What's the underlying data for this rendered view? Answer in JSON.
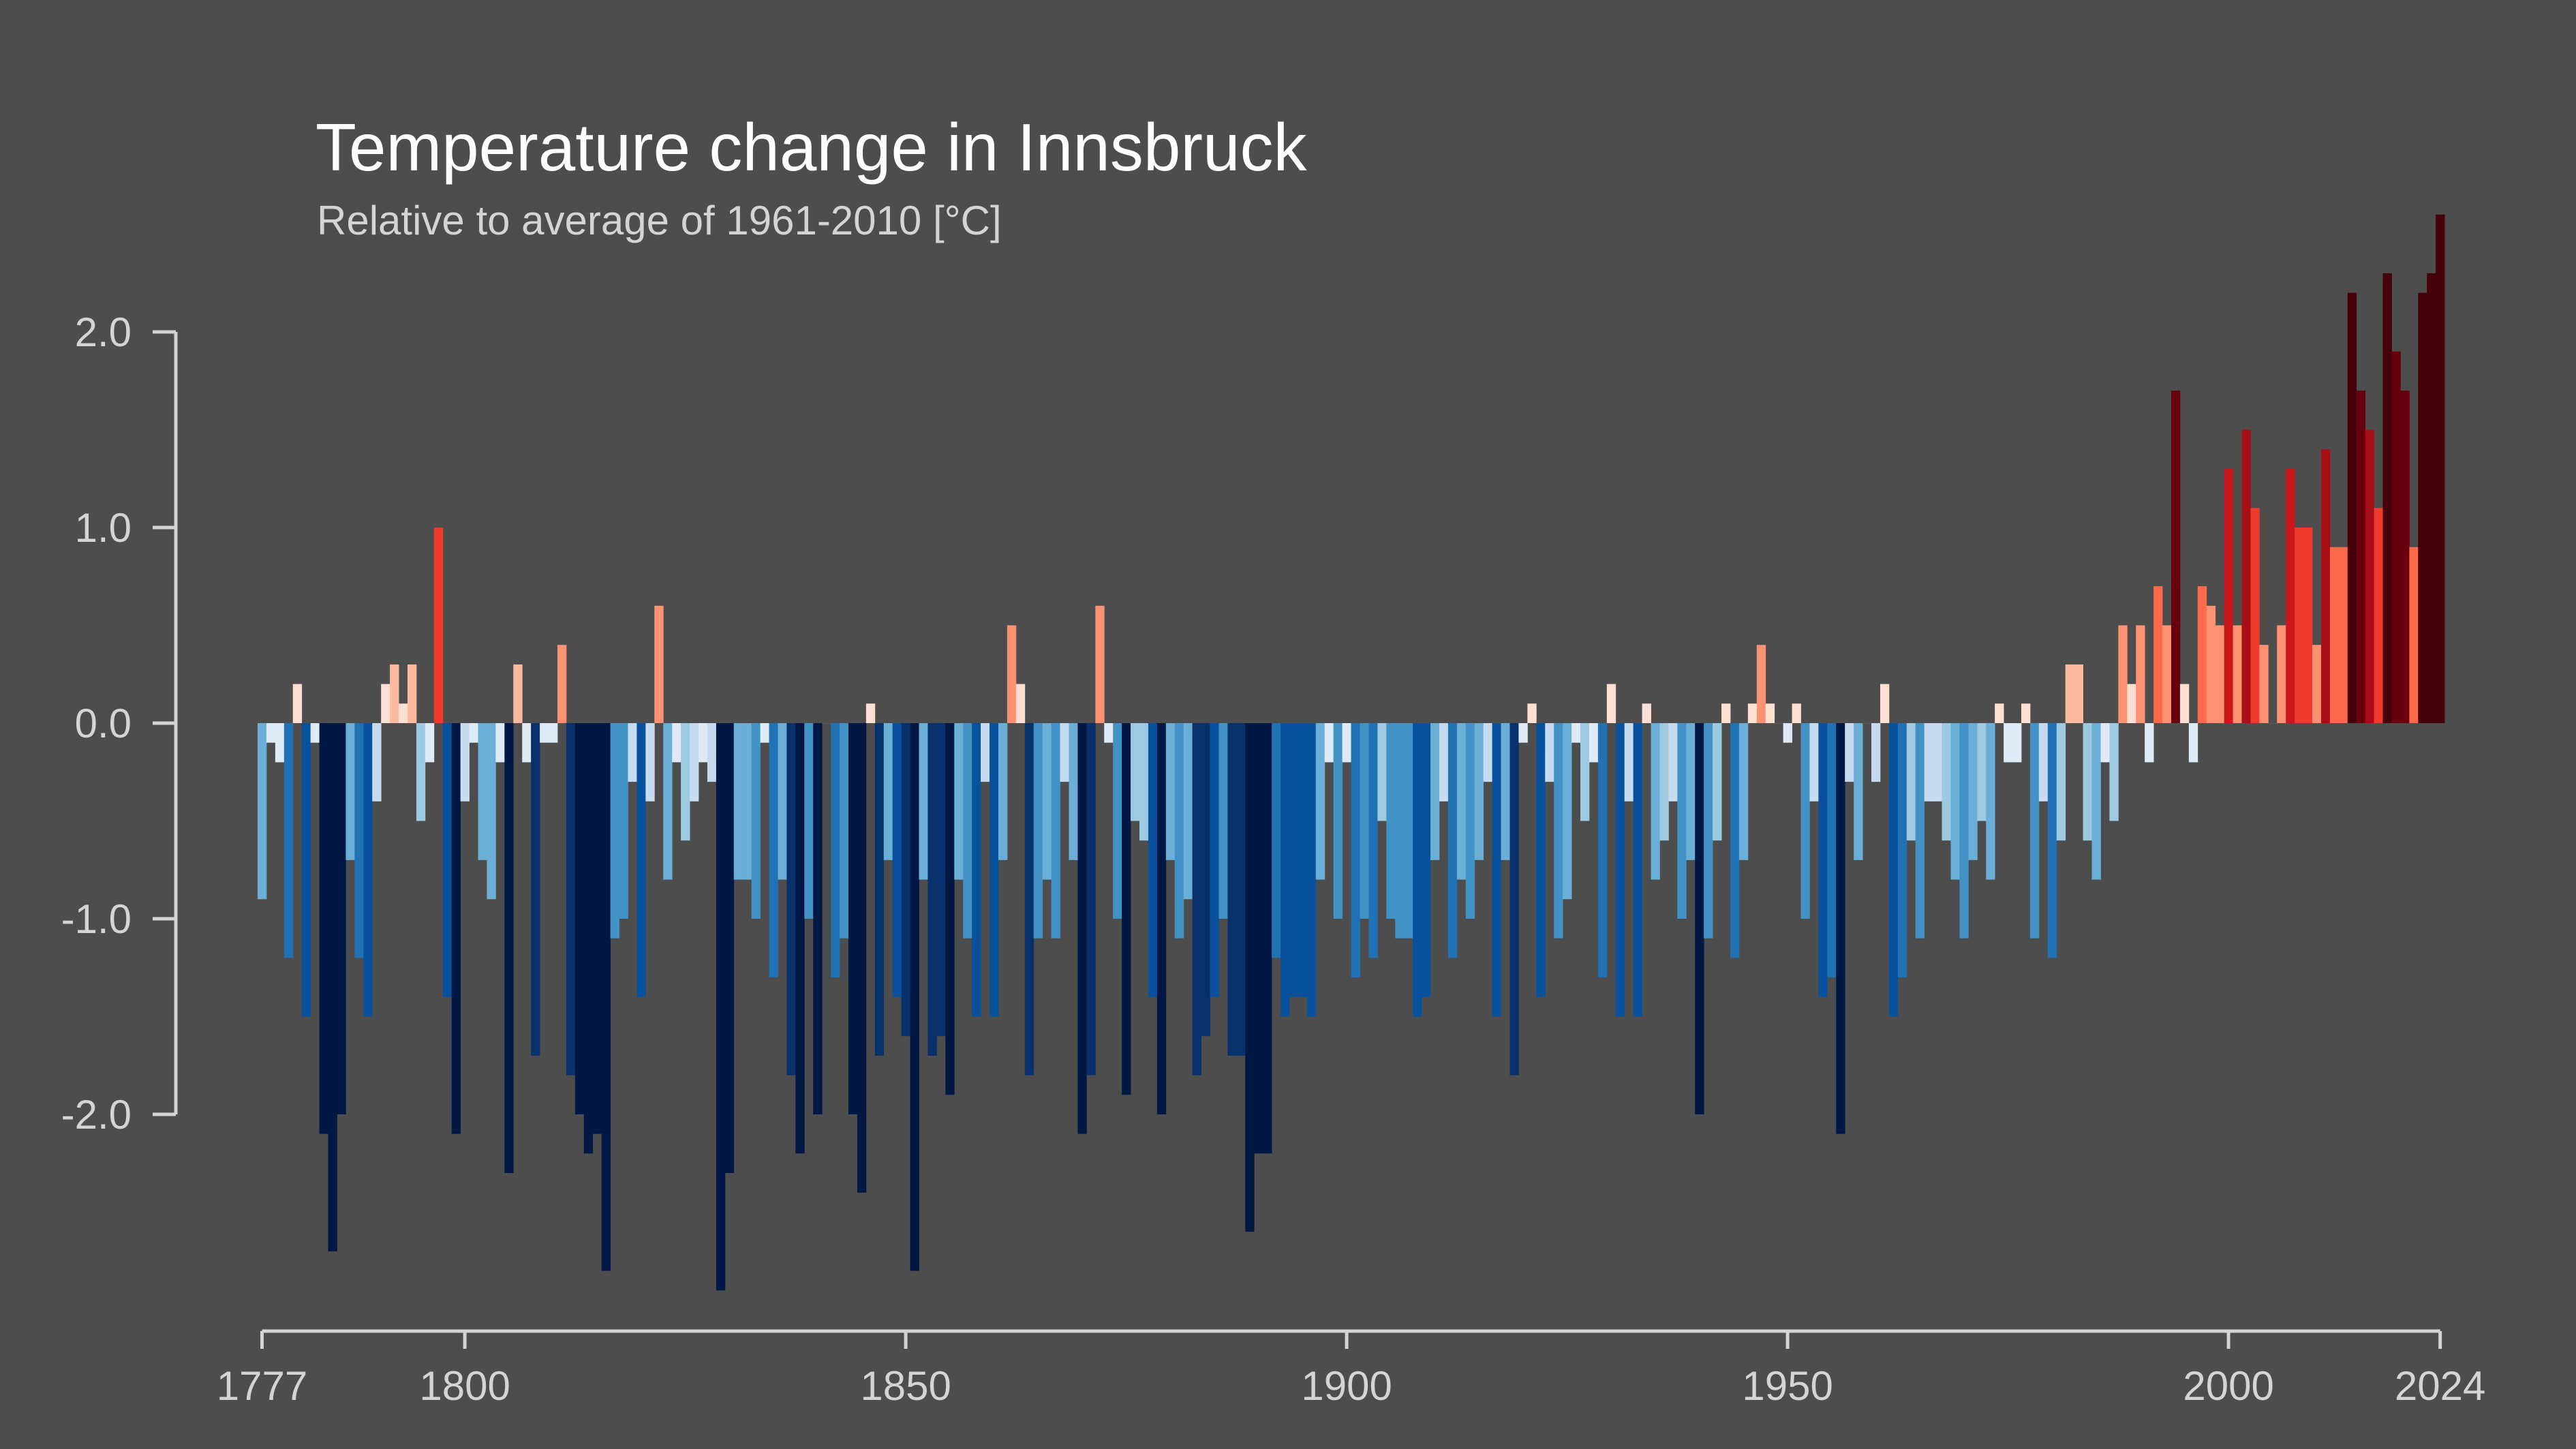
{
  "chart_data": {
    "type": "bar",
    "title": "Temperature change in Innsbruck",
    "subtitle": "Relative to average of 1961-2010  [°C]",
    "xlabel": "",
    "ylabel": "",
    "x_start": 1777,
    "x_end": 2024,
    "ylim": [
      -3.1,
      2.6
    ],
    "grid": false,
    "y_ticks": [
      {
        "value": 2.0,
        "label": "2.0"
      },
      {
        "value": 1.0,
        "label": "1.0"
      },
      {
        "value": 0.0,
        "label": "0.0"
      },
      {
        "value": -1.0,
        "label": "-1.0"
      },
      {
        "value": -2.0,
        "label": "-2.0"
      }
    ],
    "x_ticks": [
      {
        "value": 1777,
        "label": "1777"
      },
      {
        "value": 1800,
        "label": "1800"
      },
      {
        "value": 1850,
        "label": "1850"
      },
      {
        "value": 1900,
        "label": "1900"
      },
      {
        "value": 1950,
        "label": "1950"
      },
      {
        "value": 2000,
        "label": "2000"
      },
      {
        "value": 2024,
        "label": "2024"
      }
    ],
    "values": [
      -0.9,
      -0.1,
      -0.2,
      -1.2,
      0.2,
      -1.5,
      -0.1,
      -2.1,
      -2.7,
      -2.0,
      -0.7,
      -1.2,
      -1.5,
      -0.4,
      0.2,
      0.3,
      0.1,
      0.3,
      -0.5,
      -0.2,
      1.0,
      -1.4,
      -2.1,
      -0.4,
      -0.1,
      -0.7,
      -0.9,
      -0.2,
      -2.3,
      0.3,
      -0.2,
      -1.7,
      -0.1,
      -0.1,
      0.4,
      -1.8,
      -2.0,
      -2.2,
      -2.1,
      -2.8,
      -1.1,
      -1.0,
      -0.3,
      -1.4,
      -0.4,
      0.6,
      -0.8,
      -0.2,
      -0.6,
      -0.4,
      -0.2,
      -0.3,
      -2.9,
      -2.3,
      -0.8,
      -0.8,
      -1.0,
      -0.1,
      -1.3,
      -0.8,
      -1.8,
      -2.2,
      -1.0,
      -2.0,
      0.0,
      -1.3,
      -1.1,
      -2.0,
      -2.4,
      0.1,
      -1.7,
      -0.7,
      -1.4,
      -1.6,
      -2.8,
      -0.8,
      -1.7,
      -1.6,
      -1.9,
      -0.8,
      -1.1,
      -1.5,
      -0.3,
      -1.5,
      -0.7,
      0.5,
      0.2,
      -1.8,
      -1.1,
      -0.8,
      -1.1,
      -0.3,
      -0.7,
      -2.1,
      -1.8,
      0.6,
      -0.1,
      -1.0,
      -1.9,
      -0.5,
      -0.6,
      -1.4,
      -2.0,
      -0.7,
      -1.1,
      -0.9,
      -1.8,
      -1.6,
      -1.4,
      -1.0,
      -1.7,
      -1.7,
      -2.6,
      -2.2,
      -2.2,
      -1.2,
      -1.5,
      -1.4,
      -1.4,
      -1.5,
      -0.8,
      -0.2,
      -1.0,
      -0.2,
      -1.3,
      -1.0,
      -1.2,
      -0.5,
      -1.0,
      -1.1,
      -1.1,
      -1.5,
      -1.4,
      -0.7,
      -0.4,
      -1.2,
      -0.8,
      -1.0,
      -0.7,
      -0.3,
      -1.5,
      -0.7,
      -1.8,
      -0.1,
      0.1,
      -1.4,
      -0.3,
      -1.1,
      -0.9,
      -0.1,
      -0.5,
      -0.2,
      -1.3,
      0.2,
      -1.5,
      -0.4,
      -1.5,
      0.1,
      -0.8,
      -0.6,
      -0.4,
      -1.0,
      -0.7,
      -2.0,
      -1.1,
      -0.6,
      0.1,
      -1.2,
      -0.7,
      0.1,
      0.4,
      0.1,
      0.0,
      -0.1,
      0.1,
      -1.0,
      -0.4,
      -1.4,
      -1.3,
      -2.1,
      -0.3,
      -0.7,
      0.0,
      -0.3,
      0.2,
      -1.5,
      -1.3,
      -0.6,
      -1.1,
      -0.4,
      -0.4,
      -0.6,
      -0.8,
      -1.1,
      -0.7,
      -0.5,
      -0.8,
      0.1,
      -0.2,
      -0.2,
      0.1,
      -1.1,
      -0.4,
      -1.2,
      -0.6,
      0.3,
      0.3,
      -0.6,
      -0.8,
      -0.2,
      -0.5,
      0.5,
      0.2,
      0.5,
      -0.2,
      0.7,
      0.5,
      1.7,
      0.2,
      -0.2,
      0.7,
      0.6,
      0.5,
      1.3,
      0.5,
      1.5,
      1.1,
      0.4,
      0.0,
      0.5,
      1.3,
      1.0,
      1.0,
      0.4,
      1.4,
      0.9,
      0.9,
      2.2,
      1.7,
      1.5,
      1.1,
      2.3,
      1.9,
      1.7,
      0.9,
      2.2,
      2.3,
      2.6
    ],
    "color_scale": {
      "thresholds": [
        -1.85,
        -1.55,
        -1.35,
        -1.15,
        -0.95,
        -0.65,
        -0.45,
        -0.25,
        -0.05,
        0.05,
        0.25,
        0.35,
        0.65,
        0.95,
        1.15,
        1.35,
        1.55,
        1.95
      ],
      "colors": [
        "#011845",
        "#08306b",
        "#08519c",
        "#2171b5",
        "#4292c6",
        "#6baed6",
        "#9ecae1",
        "#c6dbef",
        "#deebf7",
        "#4d4d4d",
        "#fee0d2",
        "#fcbba1",
        "#fc9272",
        "#fb6a4a",
        "#ef3b2c",
        "#cb181d",
        "#a50f15",
        "#67000d",
        "#45000a"
      ]
    }
  }
}
